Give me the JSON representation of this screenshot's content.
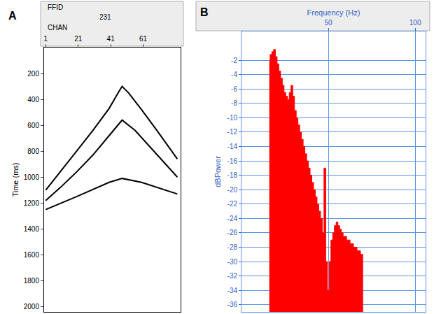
{
  "chart_data": [
    {
      "type": "line",
      "label": "A",
      "annotations": [
        "FFID",
        "231",
        "CHAN"
      ],
      "ylabel": "Time (ms)",
      "xlim": [
        0,
        84
      ],
      "xticks": [
        1,
        21,
        41,
        61
      ],
      "ylim": [
        2040,
        0
      ],
      "yticks": [
        200,
        400,
        600,
        800,
        1000,
        1200,
        1400,
        1600,
        1800,
        2000
      ],
      "grid": false,
      "series": [
        {
          "color": "#000000",
          "x": [
            1,
            10,
            20,
            30,
            40,
            46,
            48,
            52,
            60,
            70,
            82
          ],
          "values": [
            1100,
            960,
            800,
            640,
            470,
            340,
            300,
            350,
            480,
            650,
            860
          ]
        },
        {
          "color": "#000000",
          "x": [
            1,
            10,
            20,
            30,
            40,
            48,
            56,
            66,
            82
          ],
          "values": [
            1180,
            1080,
            960,
            830,
            680,
            560,
            640,
            780,
            1000
          ]
        },
        {
          "color": "#000000",
          "x": [
            1,
            20,
            40,
            48,
            60,
            82
          ],
          "values": [
            1250,
            1150,
            1040,
            1010,
            1040,
            1130
          ]
        }
      ]
    },
    {
      "type": "area",
      "label": "B",
      "xlabel": "Frequency (Hz)",
      "ylabel": "dBPower",
      "color": "#ff0000",
      "x": [
        16,
        17,
        18,
        19,
        20,
        21,
        22,
        23,
        24,
        25,
        26,
        27,
        28,
        29,
        30,
        31,
        32,
        33,
        34,
        35,
        36,
        37,
        38,
        39,
        40,
        41,
        42,
        43,
        44,
        45,
        46,
        47,
        48,
        49,
        50,
        51,
        52,
        53,
        54,
        55,
        56,
        57,
        58,
        59,
        60,
        61,
        62,
        63,
        64,
        65,
        66,
        67,
        68,
        69,
        70
      ],
      "values": [
        -2,
        -1.2,
        -0.8,
        -0.5,
        -1.5,
        -2.5,
        -3.5,
        -4.5,
        -5.5,
        -6.5,
        -7,
        -7.5,
        -6.5,
        -5.5,
        -7,
        -9,
        -10,
        -11,
        -12,
        -13,
        -14,
        -15,
        -16,
        -17,
        -18,
        -19,
        -20,
        -21,
        -22,
        -23,
        -24,
        -26,
        -17,
        -30,
        -34,
        -30,
        -27,
        -26,
        -25,
        -24.5,
        -25,
        -25.5,
        -26,
        -26.5,
        -26.5,
        -27,
        -27,
        -27.5,
        -27.5,
        -28,
        -28,
        -28.5,
        -28.5,
        -29,
        -29
      ],
      "xlim": [
        0,
        106
      ],
      "xticks": [
        50,
        100
      ],
      "ylim": [
        -37,
        2
      ],
      "yticks": [
        -2,
        -4,
        -6,
        -8,
        -10,
        -12,
        -14,
        -16,
        -18,
        -20,
        -22,
        -24,
        -26,
        -28,
        -30,
        -32,
        -34,
        -36
      ],
      "grid": true
    }
  ]
}
